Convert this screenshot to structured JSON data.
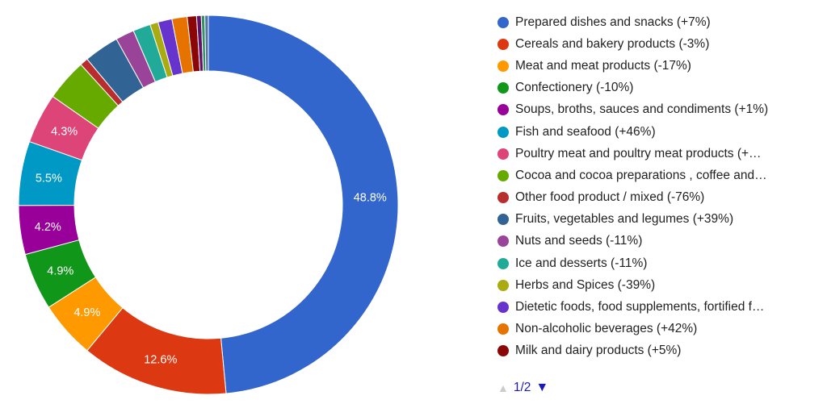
{
  "chart_data": {
    "type": "pie",
    "donut": true,
    "legend_position": "right",
    "slices": [
      {
        "label": "Prepared dishes and snacks (+7%)",
        "value": 48.8,
        "color": "#3366cc",
        "value_label": "48.8%"
      },
      {
        "label": "Cereals and bakery products (-3%)",
        "value": 12.6,
        "color": "#dc3912",
        "value_label": "12.6%"
      },
      {
        "label": "Meat and meat products (-17%)",
        "value": 4.9,
        "color": "#ff9900",
        "value_label": "4.9%"
      },
      {
        "label": "Confectionery (-10%)",
        "value": 4.9,
        "color": "#109618",
        "value_label": "4.9%"
      },
      {
        "label": "Soups, broths, sauces and condiments (+1%)",
        "value": 4.2,
        "color": "#990099",
        "value_label": "4.2%"
      },
      {
        "label": "Fish and seafood (+46%)",
        "value": 5.5,
        "color": "#0099c6",
        "value_label": "5.5%"
      },
      {
        "label": "Poultry meat and poultry meat products (+…",
        "value": 4.3,
        "color": "#dd4477",
        "value_label": "4.3%"
      },
      {
        "label": "Cocoa and cocoa preparations , coffee and…",
        "value": 3.6,
        "color": "#66aa00",
        "value_label": ""
      },
      {
        "label": "Other food product / mixed (-76%)",
        "value": 0.7,
        "color": "#b82e2e",
        "value_label": ""
      },
      {
        "label": "Fruits, vegetables and legumes (+39%)",
        "value": 3.0,
        "color": "#316395",
        "value_label": ""
      },
      {
        "label": "Nuts and seeds (-11%)",
        "value": 1.6,
        "color": "#994499",
        "value_label": ""
      },
      {
        "label": "Ice and desserts (-11%)",
        "value": 1.5,
        "color": "#22aa99",
        "value_label": ""
      },
      {
        "label": "Herbs and Spices (-39%)",
        "value": 0.7,
        "color": "#aaaa11",
        "value_label": ""
      },
      {
        "label": "Dietetic foods, food supplements, fortified f…",
        "value": 1.2,
        "color": "#6633cc",
        "value_label": ""
      },
      {
        "label": "Non-alcoholic beverages (+42%)",
        "value": 1.3,
        "color": "#e67300",
        "value_label": ""
      },
      {
        "label": "Milk and dairy products (+5%)",
        "value": 0.8,
        "color": "#8b0707",
        "value_label": ""
      },
      {
        "label": "",
        "value": 0.4,
        "color": "#651067",
        "value_label": ""
      },
      {
        "label": "",
        "value": 0.3,
        "color": "#329262",
        "value_label": ""
      },
      {
        "label": "",
        "value": 0.3,
        "color": "#5574a6",
        "value_label": ""
      }
    ]
  },
  "legend": {
    "visible_count": 16
  },
  "pager": {
    "prev_icon": "▲",
    "text": "1/2",
    "next_icon": "▼"
  }
}
